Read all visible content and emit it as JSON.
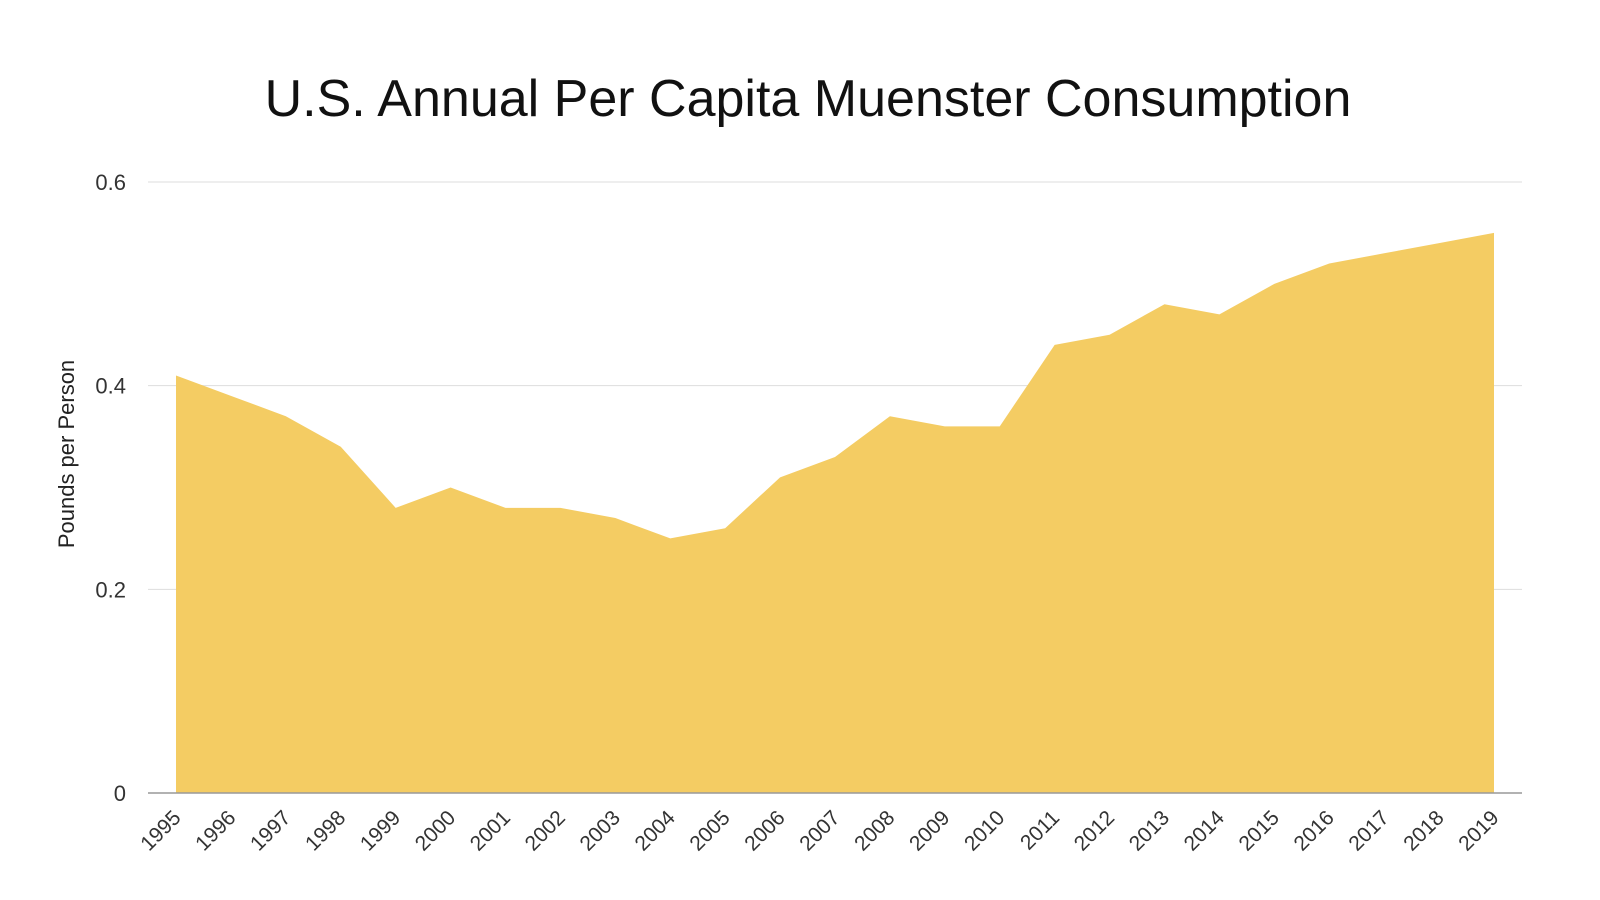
{
  "chart_data": {
    "type": "area",
    "title": "U.S. Annual Per Capita Muenster Consumption",
    "xlabel": "",
    "ylabel": "Pounds per Person",
    "x": [
      "1995",
      "1996",
      "1997",
      "1998",
      "1999",
      "2000",
      "2001",
      "2002",
      "2003",
      "2004",
      "2005",
      "2006",
      "2007",
      "2008",
      "2009",
      "2010",
      "2011",
      "2012",
      "2013",
      "2014",
      "2015",
      "2016",
      "2017",
      "2018",
      "2019"
    ],
    "series": [
      {
        "values": [
          0.41,
          0.39,
          0.37,
          0.34,
          0.28,
          0.3,
          0.28,
          0.28,
          0.27,
          0.25,
          0.26,
          0.31,
          0.33,
          0.37,
          0.36,
          0.36,
          0.44,
          0.45,
          0.48,
          0.47,
          0.5,
          0.52,
          0.53,
          0.54,
          0.55
        ],
        "color": "#f4cc63"
      }
    ],
    "yticks": [
      "0",
      "0.2",
      "0.4",
      "0.6"
    ],
    "ytick_values": [
      0,
      0.2,
      0.4,
      0.6
    ],
    "ylim": [
      0,
      0.6
    ],
    "grid": true,
    "legend": "none"
  }
}
